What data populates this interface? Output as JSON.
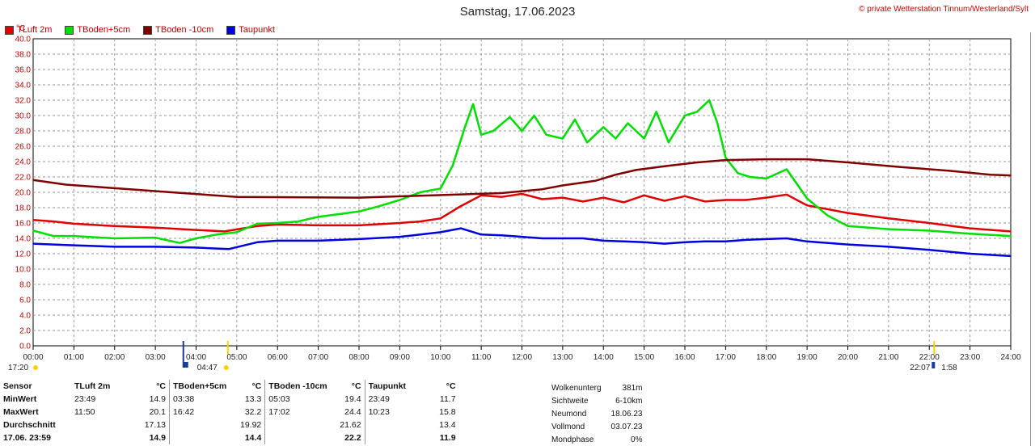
{
  "title": "Samstag, 17.06.2023",
  "copyright": "© private Wetterstation Tinnum/Westerland/Sylt",
  "legend": [
    {
      "label": "TLuft 2m",
      "color": "#e00000"
    },
    {
      "label": "TBoden+5cm",
      "color": "#00e000"
    },
    {
      "label": "TBoden -10cm",
      "color": "#800000"
    },
    {
      "label": "Taupunkt",
      "color": "#0000e0"
    }
  ],
  "chart_data": {
    "type": "line",
    "ylabel": "°C",
    "ylim": [
      0,
      40
    ],
    "y_ticks": [
      "0.0",
      "2.0",
      "4.0",
      "6.0",
      "8.0",
      "10.0",
      "12.0",
      "14.0",
      "16.0",
      "18.0",
      "20.0",
      "22.0",
      "24.0",
      "26.0",
      "28.0",
      "30.0",
      "32.0",
      "34.0",
      "36.0",
      "38.0",
      "40.0"
    ],
    "x_ticks": [
      "00:00",
      "01:00",
      "02:00",
      "03:00",
      "04:00",
      "05:00",
      "06:00",
      "07:00",
      "08:00",
      "09:00",
      "10:00",
      "11:00",
      "12:00",
      "13:00",
      "14:00",
      "15:00",
      "16:00",
      "17:00",
      "18:00",
      "19:00",
      "20:00",
      "21:00",
      "22:00",
      "23:00",
      "24:00"
    ],
    "grid": true,
    "series": [
      {
        "name": "TLuft 2m",
        "color": "#e00000",
        "x": [
          0,
          0.5,
          1,
          2,
          3,
          4,
          4.7,
          5.5,
          6,
          7,
          8,
          9,
          9.5,
          10,
          10.5,
          11,
          11.5,
          12,
          12.5,
          13,
          13.5,
          14,
          14.5,
          15,
          15.5,
          16,
          16.5,
          17,
          17.5,
          18,
          18.5,
          19,
          20,
          21,
          22,
          23,
          24
        ],
        "values": [
          16.4,
          16.2,
          15.9,
          15.6,
          15.4,
          15.1,
          14.9,
          15.6,
          15.8,
          15.7,
          15.7,
          16.0,
          16.2,
          16.6,
          18.2,
          19.6,
          19.4,
          19.8,
          19.1,
          19.3,
          18.8,
          19.3,
          18.7,
          19.6,
          18.9,
          19.5,
          18.8,
          19.0,
          19.0,
          19.3,
          19.7,
          18.3,
          17.3,
          16.6,
          16.0,
          15.3,
          14.9
        ]
      },
      {
        "name": "TBoden+5cm",
        "color": "#00e000",
        "x": [
          0,
          0.5,
          1,
          2,
          3,
          3.6,
          4,
          4.5,
          5,
          5.5,
          6,
          6.5,
          7,
          8,
          8.5,
          9,
          9.5,
          10,
          10.3,
          10.6,
          10.8,
          11,
          11.3,
          11.7,
          12,
          12.3,
          12.6,
          13,
          13.3,
          13.6,
          14,
          14.3,
          14.6,
          15,
          15.3,
          15.6,
          16,
          16.3,
          16.6,
          16.8,
          17,
          17.3,
          17.6,
          18,
          18.5,
          19,
          19.5,
          20,
          21,
          22,
          23,
          24
        ],
        "values": [
          15.0,
          14.3,
          14.3,
          14.0,
          14.1,
          13.4,
          14.0,
          14.5,
          14.8,
          15.9,
          16.0,
          16.2,
          16.8,
          17.5,
          18.2,
          19.0,
          20.0,
          20.5,
          23.5,
          28.5,
          31.5,
          27.5,
          28.0,
          29.8,
          28.0,
          30.0,
          27.5,
          27.0,
          29.5,
          26.5,
          28.5,
          27.0,
          29.0,
          27.0,
          30.5,
          26.5,
          30.0,
          30.5,
          32.0,
          29.0,
          24.5,
          22.5,
          22.0,
          21.8,
          23.0,
          19.2,
          17.0,
          15.6,
          15.2,
          15.0,
          14.6,
          14.3
        ]
      },
      {
        "name": "TBoden -10cm",
        "color": "#800000",
        "x": [
          0,
          0.8,
          2.1,
          3.4,
          5.0,
          8.0,
          11.5,
          12.5,
          13.0,
          13.8,
          14.3,
          14.8,
          15.5,
          16.3,
          17.0,
          18.0,
          19.0,
          20.0,
          21.3,
          22.5,
          23.5,
          24
        ],
        "values": [
          21.6,
          21.0,
          20.5,
          20.0,
          19.4,
          19.3,
          19.9,
          20.4,
          20.9,
          21.5,
          22.3,
          22.9,
          23.4,
          23.9,
          24.2,
          24.3,
          24.3,
          23.9,
          23.3,
          22.8,
          22.3,
          22.2
        ]
      },
      {
        "name": "Taupunkt",
        "color": "#0000e0",
        "x": [
          0,
          1,
          2,
          3,
          4,
          4.8,
          5.5,
          6,
          7,
          8,
          9,
          9.5,
          10,
          10.5,
          11,
          11.5,
          12,
          12.5,
          13,
          13.5,
          14,
          14.5,
          15,
          15.5,
          16,
          16.5,
          17,
          17.5,
          18,
          18.5,
          19,
          20,
          21,
          22,
          23,
          24
        ],
        "values": [
          13.3,
          13.1,
          12.9,
          12.9,
          12.8,
          12.6,
          13.5,
          13.7,
          13.7,
          13.9,
          14.2,
          14.5,
          14.8,
          15.3,
          14.5,
          14.4,
          14.2,
          14.0,
          14.0,
          14.0,
          13.7,
          13.6,
          13.5,
          13.3,
          13.5,
          13.6,
          13.6,
          13.8,
          13.9,
          14.0,
          13.6,
          13.2,
          12.9,
          12.5,
          12.0,
          11.7
        ]
      }
    ]
  },
  "markers": {
    "left_time": "17:20",
    "sunrise_time": "04:47",
    "sunset_time": "22:07",
    "right_time": "1:58"
  },
  "stats": {
    "headers": [
      "Sensor",
      "TLuft 2m",
      "°C",
      "TBoden+5cm",
      "°C",
      "TBoden -10cm",
      "°C",
      "Taupunkt",
      "°C"
    ],
    "rows": [
      {
        "label": "MinWert",
        "cells": [
          "23:49",
          "14.9",
          "03:38",
          "13.3",
          "05:03",
          "19.4",
          "23:49",
          "11.7"
        ]
      },
      {
        "label": "MaxWert",
        "cells": [
          "11:50",
          "20.1",
          "16:42",
          "32.2",
          "17:02",
          "24.4",
          "10:23",
          "15.8"
        ]
      },
      {
        "label": "Durchschnitt",
        "cells": [
          "",
          "17.13",
          "",
          "19.92",
          "",
          "21.62",
          "",
          "13.4"
        ]
      },
      {
        "label": "17.06. 23:59",
        "cells": [
          "",
          "14.9",
          "",
          "14.4",
          "",
          "22.2",
          "",
          "11.9"
        ]
      }
    ]
  },
  "moon": [
    {
      "label": "Wolkenunterg",
      "value": "381m"
    },
    {
      "label": "Sichtweite",
      "value": "6-10km"
    },
    {
      "label": "Neumond",
      "value": "18.06.23"
    },
    {
      "label": "Vollmond",
      "value": "03.07.23"
    },
    {
      "label": "Mondphase",
      "value": "0%"
    }
  ]
}
